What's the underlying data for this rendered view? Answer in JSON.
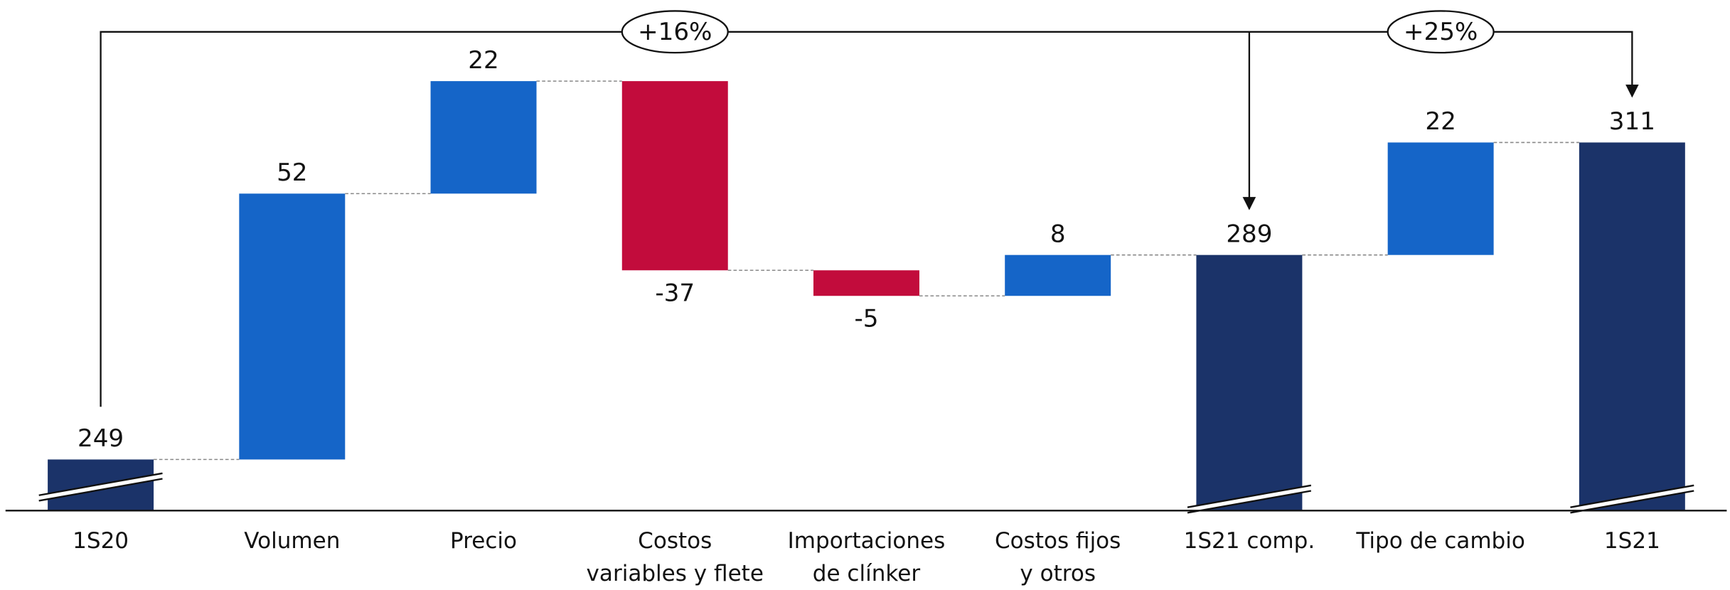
{
  "chart_data": {
    "type": "waterfall",
    "categories": [
      "1S20",
      "Volumen",
      "Precio",
      "Costos\nvariables y flete",
      "Importaciones\nde clínker",
      "Costos fijos\ny otros",
      "1S21 comp.",
      "Tipo de cambio",
      "1S21"
    ],
    "values": [
      249,
      52,
      22,
      -37,
      -5,
      8,
      289,
      22,
      311
    ],
    "measure": [
      "absolute",
      "relative",
      "relative",
      "relative",
      "relative",
      "relative",
      "absolute",
      "relative",
      "absolute"
    ],
    "colors": {
      "absolute": "#1b3369",
      "increase": "#1565c8",
      "decrease": "#c20c3c"
    },
    "ylim": [
      239,
      335
    ],
    "annotations": [
      "+16%",
      "+25%"
    ]
  }
}
